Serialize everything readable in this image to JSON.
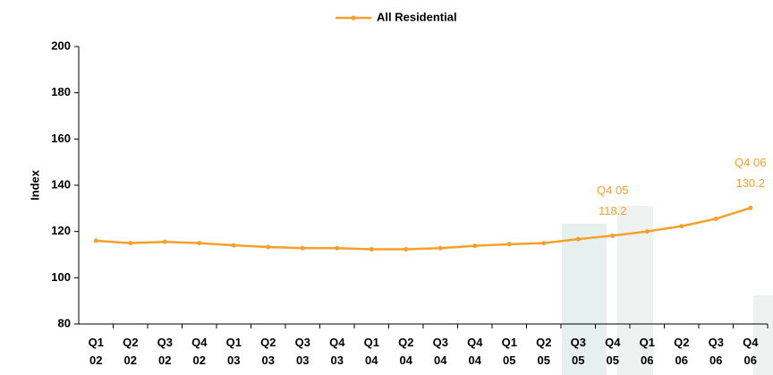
{
  "chart_data": {
    "type": "line",
    "y_label": "Index",
    "categories": [
      "Q1 02",
      "Q2 02",
      "Q3 02",
      "Q4 02",
      "Q1 03",
      "Q2 03",
      "Q3 03",
      "Q4 03",
      "Q1 04",
      "Q2 04",
      "Q3 04",
      "Q4 04",
      "Q1 05",
      "Q2 05",
      "Q3 05",
      "Q4 05",
      "Q1 06",
      "Q2 06",
      "Q3 06",
      "Q4 06"
    ],
    "series": [
      {
        "name": "All Residential",
        "color": "#f5a02a",
        "values": [
          116,
          115,
          115.5,
          115,
          114,
          113.3,
          112.8,
          112.8,
          112.3,
          112.3,
          112.8,
          113.8,
          114.5,
          115,
          116.7,
          118.2,
          120,
          122.3,
          125.5,
          130.2
        ]
      }
    ],
    "annotations": [
      {
        "label": "Q4 05",
        "value": 118.2
      },
      {
        "label": "Q4 06",
        "value": 130.2
      }
    ],
    "ylim": [
      80,
      200
    ],
    "yticks": [
      80,
      100,
      120,
      140,
      160,
      180,
      200
    ],
    "legend": "top"
  }
}
